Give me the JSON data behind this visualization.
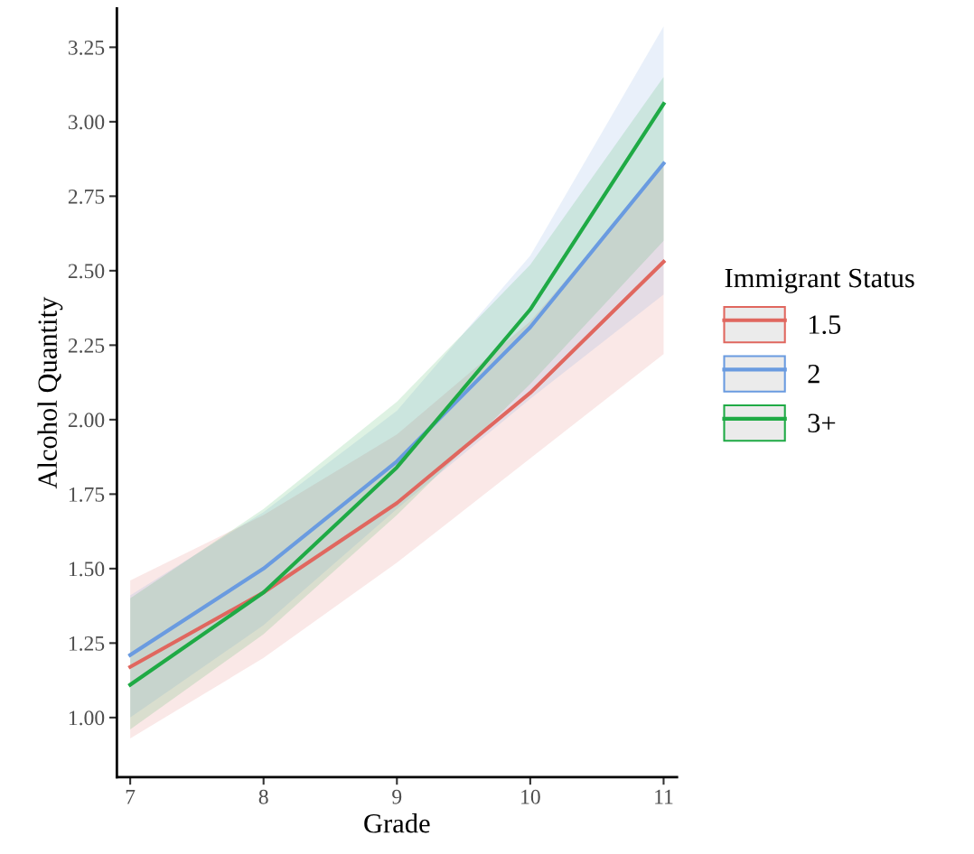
{
  "chart_data": {
    "type": "line",
    "xlabel": "Grade",
    "ylabel": "Alcohol Quantity",
    "legend_title": "Immigrant Status",
    "legend": "right",
    "grid": false,
    "marker": "none",
    "line_style": "solid",
    "x": [
      7,
      8,
      9,
      10,
      11
    ],
    "xlim": [
      6.9,
      11.1
    ],
    "xticks": [
      7,
      8,
      9,
      10,
      11
    ],
    "ylim": [
      0.8,
      3.38
    ],
    "yticks": [
      {
        "value": 1,
        "label": "1.00"
      },
      {
        "value": 1.25,
        "label": "1.25"
      },
      {
        "value": 1.5,
        "label": "1.50"
      },
      {
        "value": 1.75,
        "label": "1.75"
      },
      {
        "value": 2,
        "label": "2.00"
      },
      {
        "value": 2.25,
        "label": "2.25"
      },
      {
        "value": 2.5,
        "label": "2.50"
      },
      {
        "value": 2.75,
        "label": "2.75"
      },
      {
        "value": 3,
        "label": "3.00"
      },
      {
        "value": 3.25,
        "label": "3.25"
      }
    ],
    "series": [
      {
        "name": "1.5",
        "color": "#e0675f",
        "values": [
          1.17,
          1.42,
          1.72,
          2.09,
          2.53
        ],
        "lower": [
          0.93,
          1.2,
          1.52,
          1.87,
          2.22
        ],
        "upper": [
          1.46,
          1.68,
          1.95,
          2.33,
          2.85
        ]
      },
      {
        "name": "2",
        "color": "#6a9be0",
        "values": [
          1.21,
          1.5,
          1.86,
          2.31,
          2.86
        ],
        "lower": [
          1.0,
          1.31,
          1.7,
          2.07,
          2.42
        ],
        "upper": [
          1.41,
          1.69,
          2.03,
          2.55,
          3.32
        ]
      },
      {
        "name": "3+",
        "color": "#1faa45",
        "values": [
          1.11,
          1.42,
          1.84,
          2.37,
          3.06
        ],
        "lower": [
          0.96,
          1.28,
          1.68,
          2.12,
          2.6
        ],
        "upper": [
          1.4,
          1.7,
          2.06,
          2.52,
          3.15
        ]
      }
    ]
  }
}
